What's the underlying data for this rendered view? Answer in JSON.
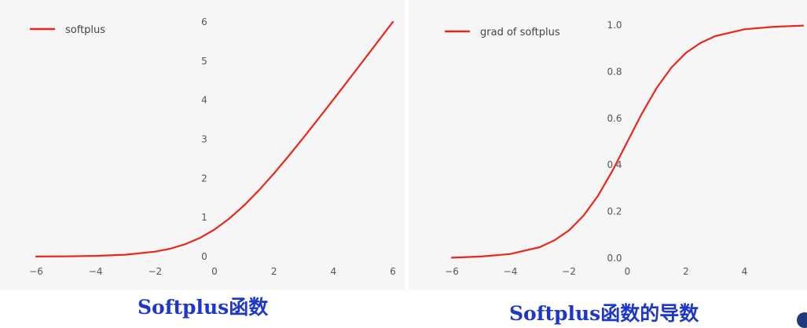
{
  "colors": {
    "line": "#e8281c",
    "caption": "#1f37c8",
    "background": "#f6f6f6"
  },
  "captions": [
    "Softplus函数",
    "Softplus函数的导数"
  ],
  "chart_data": [
    {
      "type": "line",
      "title": "",
      "xlabel": "",
      "ylabel": "",
      "xlim": [
        -6,
        6
      ],
      "ylim": [
        0,
        6
      ],
      "xticks": [
        -6,
        -4,
        -2,
        0,
        2,
        4,
        6
      ],
      "xtick_labels": [
        "−6",
        "−4",
        "−2",
        "0",
        "2",
        "4",
        "6"
      ],
      "yticks": [
        0,
        1,
        2,
        3,
        4,
        5,
        6
      ],
      "ytick_labels": [
        "0",
        "1",
        "2",
        "3",
        "4",
        "5",
        "6"
      ],
      "grid": false,
      "legend_position": "top-left",
      "series": [
        {
          "name": "softplus",
          "color": "#e8281c",
          "x": [
            -6,
            -5,
            -4,
            -3,
            -2,
            -1.5,
            -1,
            -0.5,
            0,
            0.5,
            1,
            1.5,
            2,
            2.5,
            3,
            3.5,
            4,
            4.5,
            5,
            5.5,
            6
          ],
          "y": [
            0.002,
            0.007,
            0.018,
            0.049,
            0.127,
            0.201,
            0.313,
            0.474,
            0.693,
            0.974,
            1.313,
            1.701,
            2.127,
            2.579,
            3.049,
            3.53,
            4.018,
            4.511,
            5.007,
            5.504,
            6.002
          ]
        }
      ]
    },
    {
      "type": "line",
      "title": "",
      "xlabel": "",
      "ylabel": "",
      "xlim": [
        -6,
        6
      ],
      "ylim": [
        0,
        1.0
      ],
      "xticks": [
        -6,
        -4,
        -2,
        0,
        2,
        4
      ],
      "xtick_labels": [
        "−6",
        "−4",
        "−2",
        "0",
        "2",
        "4"
      ],
      "yticks": [
        0,
        0.2,
        0.4,
        0.6,
        0.8,
        1.0
      ],
      "ytick_labels": [
        "0.0",
        "0.2",
        "0.4",
        "0.6",
        "0.8",
        "1.0"
      ],
      "grid": false,
      "legend_position": "top-left",
      "series": [
        {
          "name": "grad of softplus",
          "color": "#e8281c",
          "x": [
            -6,
            -5,
            -4,
            -3,
            -2.5,
            -2,
            -1.5,
            -1,
            -0.5,
            0,
            0.5,
            1,
            1.5,
            2,
            2.5,
            3,
            4,
            5,
            6
          ],
          "y": [
            0.002,
            0.007,
            0.018,
            0.047,
            0.076,
            0.119,
            0.182,
            0.269,
            0.378,
            0.5,
            0.622,
            0.731,
            0.818,
            0.881,
            0.924,
            0.953,
            0.982,
            0.993,
            0.998
          ]
        }
      ]
    }
  ]
}
